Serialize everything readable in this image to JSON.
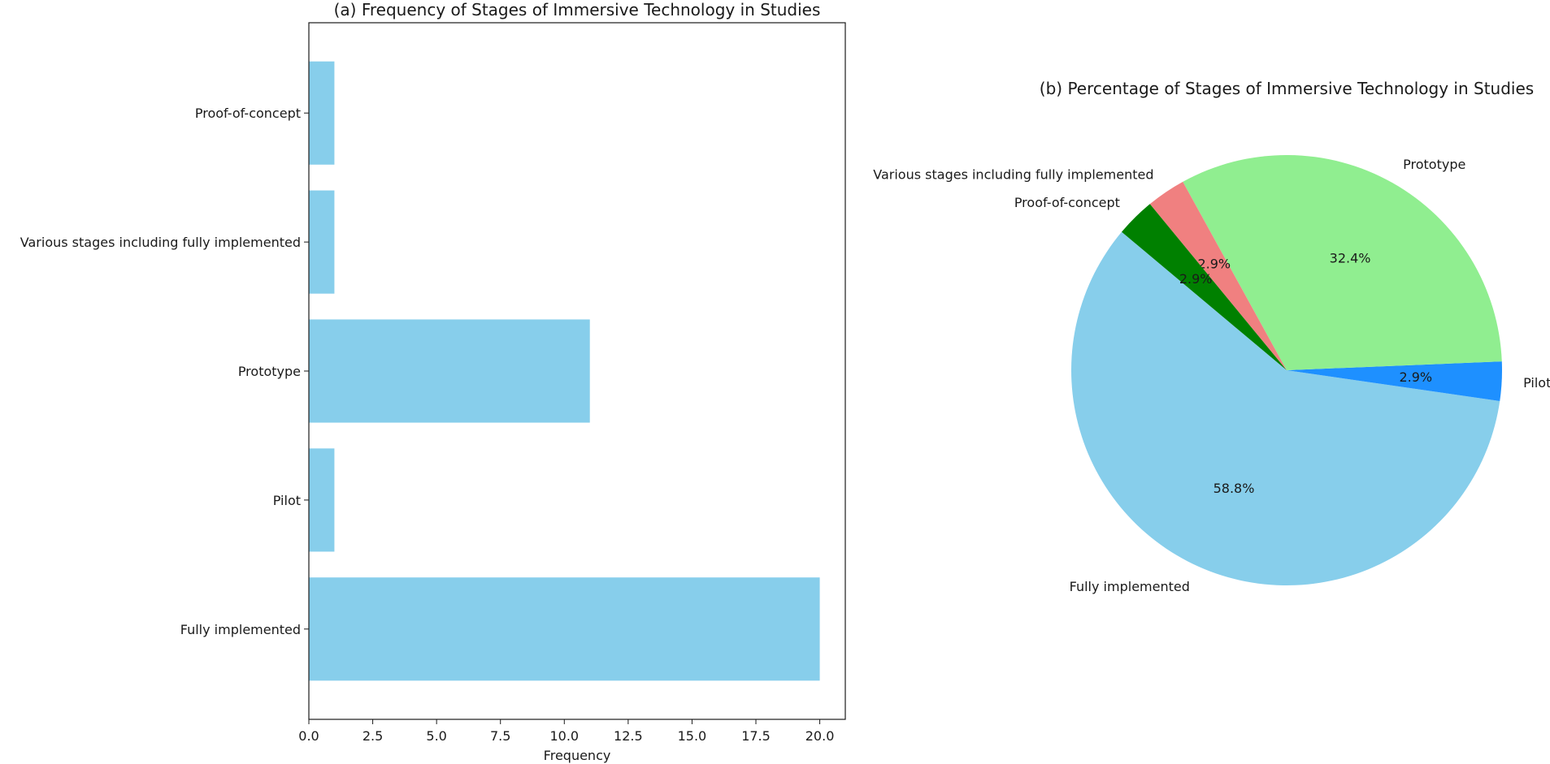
{
  "chart_data": [
    {
      "type": "bar",
      "orientation": "horizontal",
      "title": "(a) Frequency of Stages of Immersive Technology in Studies",
      "xlabel": "Frequency",
      "ylabel": "",
      "categories": [
        "Fully implemented",
        "Pilot",
        "Prototype",
        "Various stages including fully implemented",
        "Proof-of-concept"
      ],
      "values": [
        20,
        1,
        11,
        1,
        1
      ],
      "xlim": [
        0,
        21
      ],
      "xticks": [
        "0.0",
        "2.5",
        "5.0",
        "7.5",
        "10.0",
        "12.5",
        "15.0",
        "17.5",
        "20.0"
      ],
      "xtick_values": [
        0,
        2.5,
        5,
        7.5,
        10,
        12.5,
        15,
        17.5,
        20
      ],
      "bar_color": "#87CEEB",
      "grid": false
    },
    {
      "type": "pie",
      "title": "(b) Percentage of Stages of Immersive Technology in Studies",
      "slices": [
        {
          "label": "Fully implemented",
          "value": 20,
          "pct": "58.8%",
          "color": "#87CEEB"
        },
        {
          "label": "Pilot",
          "value": 1,
          "pct": "2.9%",
          "color": "#1E90FF"
        },
        {
          "label": "Prototype",
          "value": 11,
          "pct": "32.4%",
          "color": "#90EE90"
        },
        {
          "label": "Various stages including fully implemented",
          "value": 1,
          "pct": "2.9%",
          "color": "#F08080"
        },
        {
          "label": "Proof-of-concept",
          "value": 1,
          "pct": "2.9%",
          "color": "#008000"
        }
      ]
    }
  ]
}
